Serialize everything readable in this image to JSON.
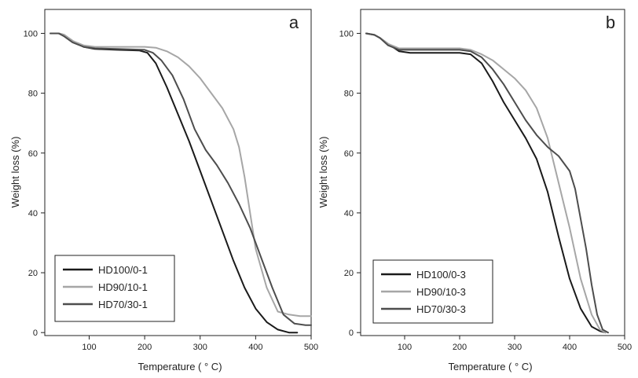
{
  "chart_data": [
    {
      "type": "line",
      "panel_label": "a",
      "xlabel": "Temperature ( ° C)",
      "ylabel": "Weight loss (%)",
      "xlim": [
        20,
        500
      ],
      "ylim": [
        -1,
        108
      ],
      "xticks": [
        100,
        200,
        300,
        400,
        500
      ],
      "yticks": [
        0,
        20,
        40,
        60,
        80,
        100
      ],
      "grid": false,
      "legend_position": "bottom-left",
      "series": [
        {
          "name": "HD100/0-1",
          "color": "#1a1a1a",
          "points": [
            [
              30,
              100
            ],
            [
              45,
              100
            ],
            [
              55,
              99.5
            ],
            [
              70,
              97.5
            ],
            [
              90,
              95.5
            ],
            [
              110,
              94.8
            ],
            [
              150,
              94.5
            ],
            [
              190,
              94.3
            ],
            [
              205,
              93.5
            ],
            [
              220,
              90
            ],
            [
              240,
              82
            ],
            [
              260,
              73
            ],
            [
              280,
              64
            ],
            [
              300,
              54
            ],
            [
              320,
              44
            ],
            [
              340,
              34
            ],
            [
              360,
              24
            ],
            [
              380,
              15
            ],
            [
              400,
              8
            ],
            [
              420,
              3.5
            ],
            [
              440,
              1
            ],
            [
              460,
              0
            ],
            [
              475,
              0
            ]
          ]
        },
        {
          "name": "HD90/10-1",
          "color": "#a6a6a6",
          "points": [
            [
              30,
              100
            ],
            [
              45,
              100
            ],
            [
              55,
              99.5
            ],
            [
              70,
              97.5
            ],
            [
              90,
              96
            ],
            [
              110,
              95.5
            ],
            [
              150,
              95.5
            ],
            [
              200,
              95.5
            ],
            [
              220,
              95.2
            ],
            [
              240,
              94
            ],
            [
              260,
              92
            ],
            [
              280,
              89
            ],
            [
              300,
              85
            ],
            [
              320,
              80
            ],
            [
              340,
              75
            ],
            [
              360,
              68
            ],
            [
              370,
              62
            ],
            [
              380,
              52
            ],
            [
              390,
              40
            ],
            [
              400,
              28
            ],
            [
              420,
              15
            ],
            [
              440,
              7
            ],
            [
              460,
              6
            ],
            [
              480,
              5.5
            ],
            [
              500,
              5.5
            ]
          ]
        },
        {
          "name": "HD70/30-1",
          "color": "#4d4d4d",
          "points": [
            [
              30,
              100
            ],
            [
              45,
              100
            ],
            [
              55,
              99
            ],
            [
              70,
              97
            ],
            [
              90,
              95.5
            ],
            [
              110,
              95
            ],
            [
              150,
              94.8
            ],
            [
              200,
              94.5
            ],
            [
              215,
              93.5
            ],
            [
              230,
              91
            ],
            [
              250,
              86
            ],
            [
              270,
              78
            ],
            [
              290,
              68
            ],
            [
              310,
              61
            ],
            [
              330,
              56
            ],
            [
              350,
              50
            ],
            [
              370,
              43
            ],
            [
              390,
              35
            ],
            [
              410,
              25
            ],
            [
              430,
              15
            ],
            [
              450,
              6
            ],
            [
              470,
              3
            ],
            [
              490,
              2.5
            ],
            [
              500,
              2.5
            ]
          ]
        }
      ]
    },
    {
      "type": "line",
      "panel_label": "b",
      "xlabel": "Temperature ( ° C)",
      "ylabel": "Weight loss (%)",
      "xlim": [
        20,
        500
      ],
      "ylim": [
        -1,
        108
      ],
      "xticks": [
        100,
        200,
        300,
        400,
        500
      ],
      "yticks": [
        0,
        20,
        40,
        60,
        80,
        100
      ],
      "grid": false,
      "legend_position": "bottom-left",
      "series": [
        {
          "name": "HD100/0-3",
          "color": "#1a1a1a",
          "points": [
            [
              30,
              100
            ],
            [
              45,
              99.5
            ],
            [
              55,
              98.5
            ],
            [
              70,
              96.5
            ],
            [
              90,
              94
            ],
            [
              110,
              93.5
            ],
            [
              150,
              93.5
            ],
            [
              200,
              93.5
            ],
            [
              220,
              93
            ],
            [
              240,
              90
            ],
            [
              260,
              84
            ],
            [
              280,
              77
            ],
            [
              300,
              71
            ],
            [
              320,
              65
            ],
            [
              340,
              58
            ],
            [
              360,
              47
            ],
            [
              380,
              32
            ],
            [
              400,
              18
            ],
            [
              420,
              8
            ],
            [
              440,
              2
            ],
            [
              455,
              0.5
            ],
            [
              465,
              0
            ]
          ]
        },
        {
          "name": "HD90/10-3",
          "color": "#a6a6a6",
          "points": [
            [
              30,
              100
            ],
            [
              45,
              99.5
            ],
            [
              55,
              98.5
            ],
            [
              70,
              96.5
            ],
            [
              90,
              95
            ],
            [
              110,
              95
            ],
            [
              150,
              95
            ],
            [
              200,
              95
            ],
            [
              220,
              94.5
            ],
            [
              240,
              93
            ],
            [
              260,
              91
            ],
            [
              280,
              88
            ],
            [
              300,
              85
            ],
            [
              320,
              81
            ],
            [
              340,
              75
            ],
            [
              360,
              65
            ],
            [
              380,
              50
            ],
            [
              400,
              35
            ],
            [
              420,
              18
            ],
            [
              440,
              6
            ],
            [
              455,
              1
            ],
            [
              465,
              0
            ]
          ]
        },
        {
          "name": "HD70/30-3",
          "color": "#4d4d4d",
          "points": [
            [
              30,
              100
            ],
            [
              45,
              99.5
            ],
            [
              55,
              98.5
            ],
            [
              70,
              96
            ],
            [
              90,
              94.5
            ],
            [
              110,
              94.5
            ],
            [
              150,
              94.5
            ],
            [
              200,
              94.5
            ],
            [
              220,
              94
            ],
            [
              240,
              92
            ],
            [
              260,
              88
            ],
            [
              280,
              83
            ],
            [
              300,
              77
            ],
            [
              320,
              71
            ],
            [
              340,
              66
            ],
            [
              360,
              62
            ],
            [
              380,
              59
            ],
            [
              400,
              54
            ],
            [
              410,
              48
            ],
            [
              420,
              38
            ],
            [
              430,
              28
            ],
            [
              440,
              16
            ],
            [
              450,
              6
            ],
            [
              460,
              1
            ],
            [
              470,
              0
            ]
          ]
        }
      ]
    }
  ]
}
